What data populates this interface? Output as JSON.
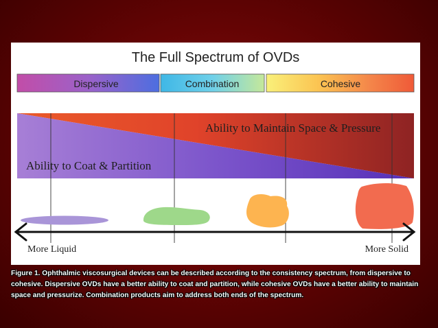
{
  "title": "The Full Spectrum of OVDs",
  "categories": [
    {
      "label": "Dispersive"
    },
    {
      "label": "Combination"
    },
    {
      "label": "Cohesive"
    }
  ],
  "triangles": {
    "upper_label": "Ability to Maintain Space & Pressure",
    "lower_label": "Ability to Coat & Partition"
  },
  "axis": {
    "left_label": "More Liquid",
    "right_label": "More Solid"
  },
  "colors": {
    "liquid_blob": "#a995d8",
    "combination_blob": "#9ed88a",
    "cohesive_blob_1": "#fdb450",
    "cohesive_blob_2": "#f26b4f",
    "background": "#6a0404"
  },
  "caption": "Figure 1. Ophthalmic viscosurgical devices can be described according to the consistency spectrum, from dispersive to cohesive. Dispersive OVDs have a better ability to coat and partition, while cohesive OVDs have a better ability to maintain space and pressurize. Combination products aim to address both ends of the spectrum."
}
